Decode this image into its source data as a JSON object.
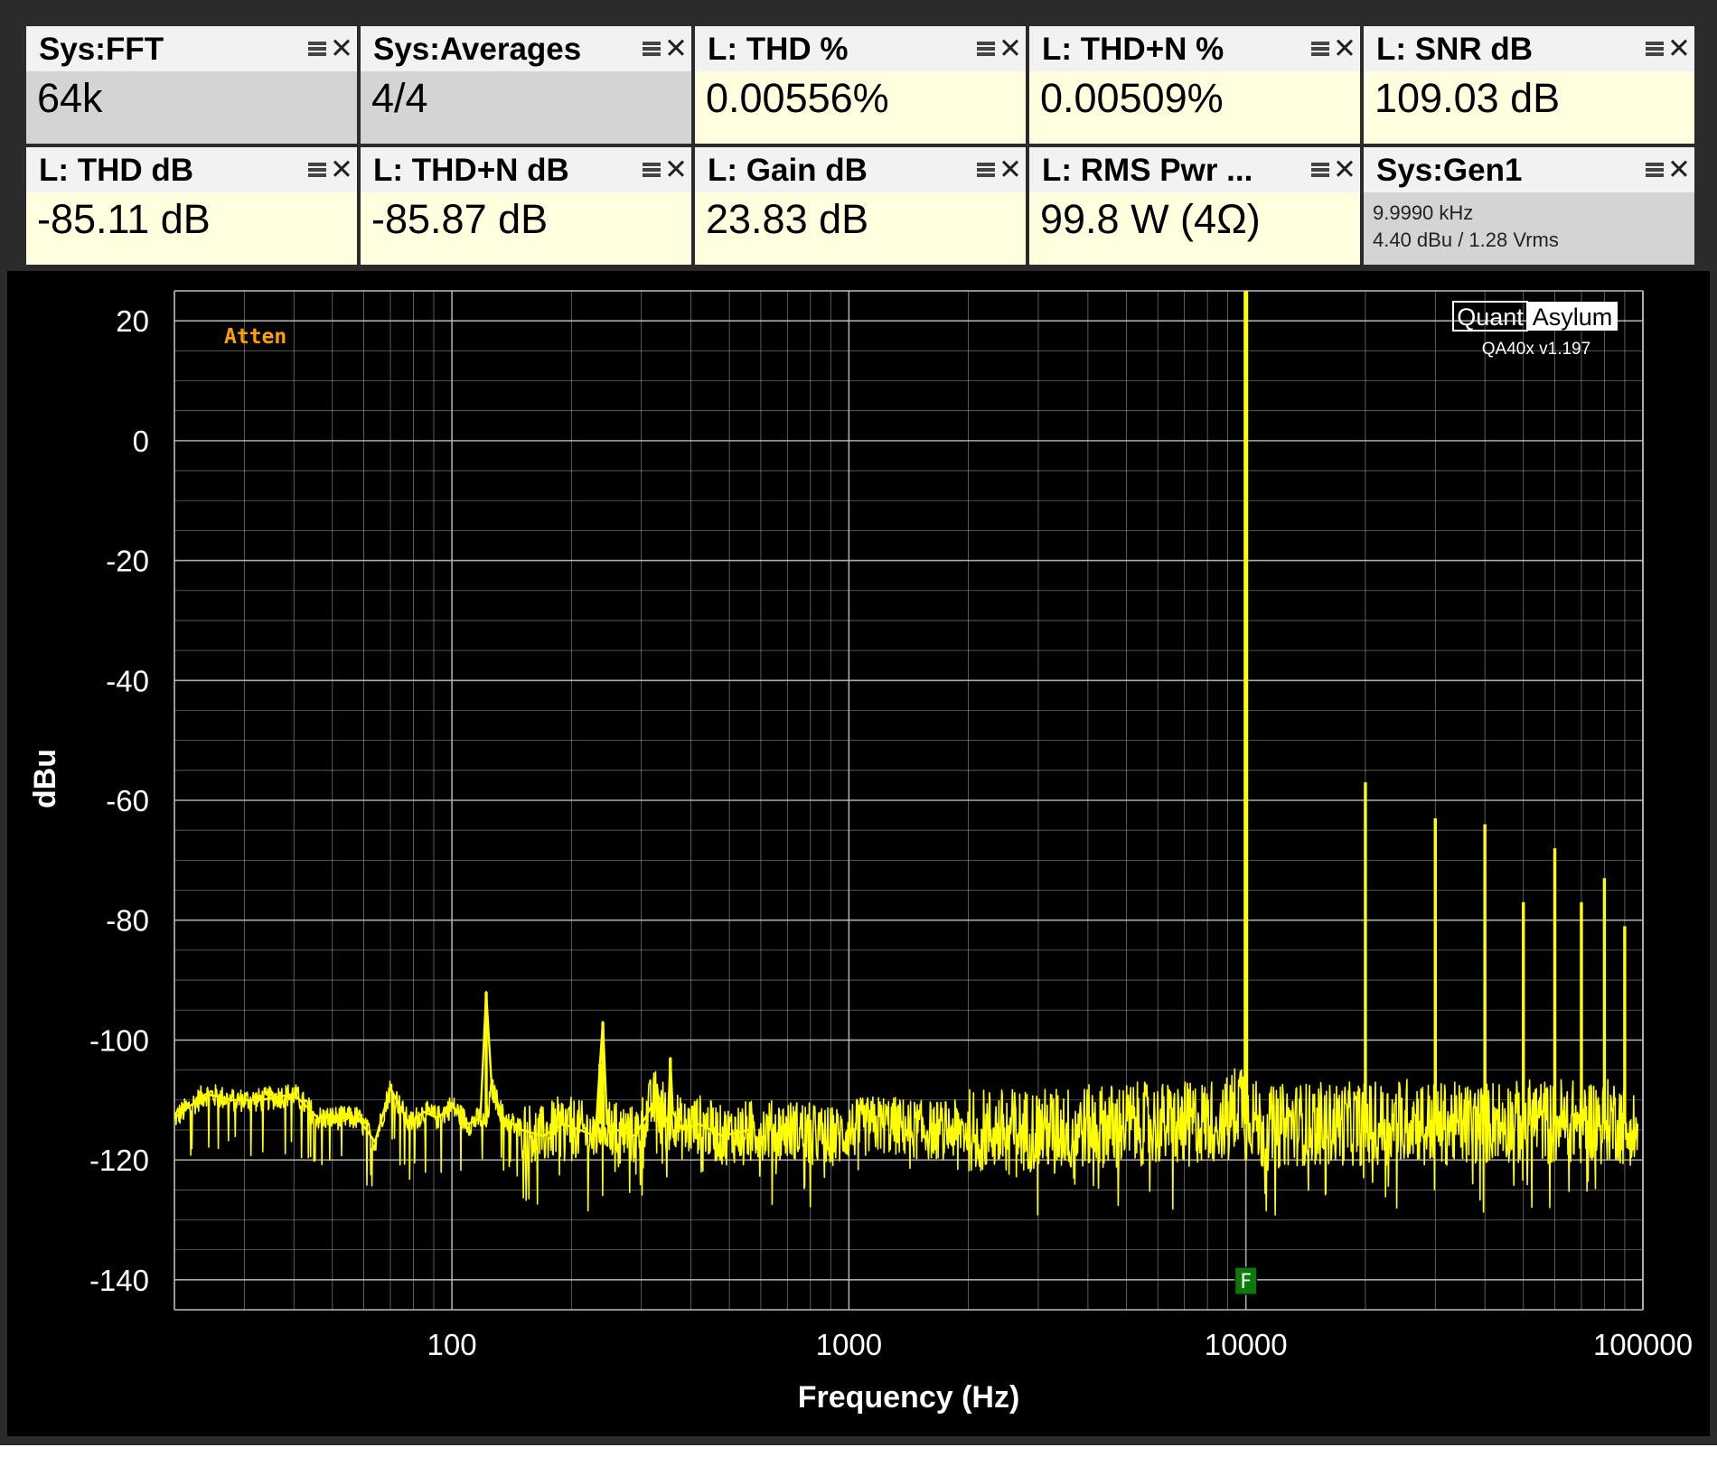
{
  "tiles": [
    {
      "title": "Sys:FFT",
      "value": "64k",
      "style": "gray"
    },
    {
      "title": "Sys:Averages",
      "value": "4/4",
      "style": "gray"
    },
    {
      "title": "L: THD %",
      "value": "0.00556%",
      "style": "yellow"
    },
    {
      "title": "L: THD+N %",
      "value": "0.00509%",
      "style": "yellow"
    },
    {
      "title": "L: SNR dB",
      "value": "109.03 dB",
      "style": "yellow"
    },
    {
      "title": "L: THD dB",
      "value": "-85.11 dB",
      "style": "yellow"
    },
    {
      "title": "L: THD+N dB",
      "value": "-85.87 dB",
      "style": "yellow"
    },
    {
      "title": "L: Gain dB",
      "value": "23.83 dB",
      "style": "yellow"
    },
    {
      "title": "L: RMS Pwr ...",
      "value": "99.8 W (4Ω)",
      "style": "yellow"
    },
    {
      "title": "Sys:Gen1",
      "lines": [
        "9.9990 kHz",
        "4.40 dBu  / 1.28 Vrms"
      ],
      "style": "gray"
    }
  ],
  "plot": {
    "atten_label": "Atten",
    "watermark_left": "Quant",
    "watermark_right": "Asylum",
    "version": "QA40x v1.197",
    "marker_label": "F",
    "colors": {
      "background": "#000000",
      "trace": "#ffff00",
      "grid": "#bdbdbd",
      "atten": "#ffa000",
      "marker": "#0b7a0b"
    }
  },
  "chart_data": {
    "type": "line",
    "xlabel": "Frequency (Hz)",
    "ylabel": "dBu",
    "x_scale": "log",
    "xlim": [
      20,
      100000
    ],
    "ylim": [
      -145,
      25
    ],
    "x_ticks": [
      100,
      1000,
      10000,
      100000
    ],
    "x_tick_labels": [
      "100",
      "1000",
      "10000",
      "100000"
    ],
    "y_ticks": [
      20,
      0,
      -20,
      -40,
      -60,
      -80,
      -100,
      -120,
      -140
    ],
    "y_tick_labels": [
      "20",
      "0",
      "-20",
      "-40",
      "-60",
      "-80",
      "-100",
      "-120",
      "-140"
    ],
    "grid": true,
    "series": [
      {
        "values_note_free": true,
        "x": [
          20,
          24,
          28,
          33,
          40,
          46,
          52,
          58,
          64,
          70,
          78,
          85,
          92,
          100,
          110,
          118,
          122,
          126,
          135,
          150,
          170,
          190,
          210,
          230,
          236,
          240,
          246,
          260,
          290,
          330,
          350,
          355,
          360,
          380,
          420,
          480,
          560,
          650,
          700,
          760,
          850,
          950,
          1000,
          1200,
          1500,
          2000,
          3000,
          5000,
          7000,
          9000,
          9800,
          10000,
          10200,
          11000,
          13000,
          15000,
          19999,
          22000,
          26000,
          29997,
          33000,
          39996,
          43000,
          49995,
          53000,
          59994,
          62000,
          69993,
          73000,
          79992,
          83000,
          89991,
          93000,
          97000
        ],
        "y": [
          -113,
          -109,
          -110,
          -110,
          -109,
          -113,
          -113,
          -113,
          -117,
          -108,
          -114,
          -112,
          -113,
          -111,
          -114,
          -113,
          -92,
          -108,
          -113,
          -115,
          -116,
          -114,
          -115,
          -116,
          -104,
          -97,
          -114,
          -115,
          -116,
          -109,
          -114,
          -103,
          -112,
          -115,
          -114,
          -116,
          -115,
          -115,
          -115,
          -115,
          -116,
          -116,
          -115,
          -114,
          -115,
          -115,
          -115,
          -114,
          -114,
          -113,
          -109,
          25,
          -112,
          -115,
          -114,
          -114,
          -57,
          -114,
          -113,
          -63,
          -114,
          -64,
          -113,
          -77,
          -113,
          -68,
          -113,
          -77,
          -113,
          -73,
          -113,
          -81,
          -114,
          -116
        ]
      }
    ]
  }
}
